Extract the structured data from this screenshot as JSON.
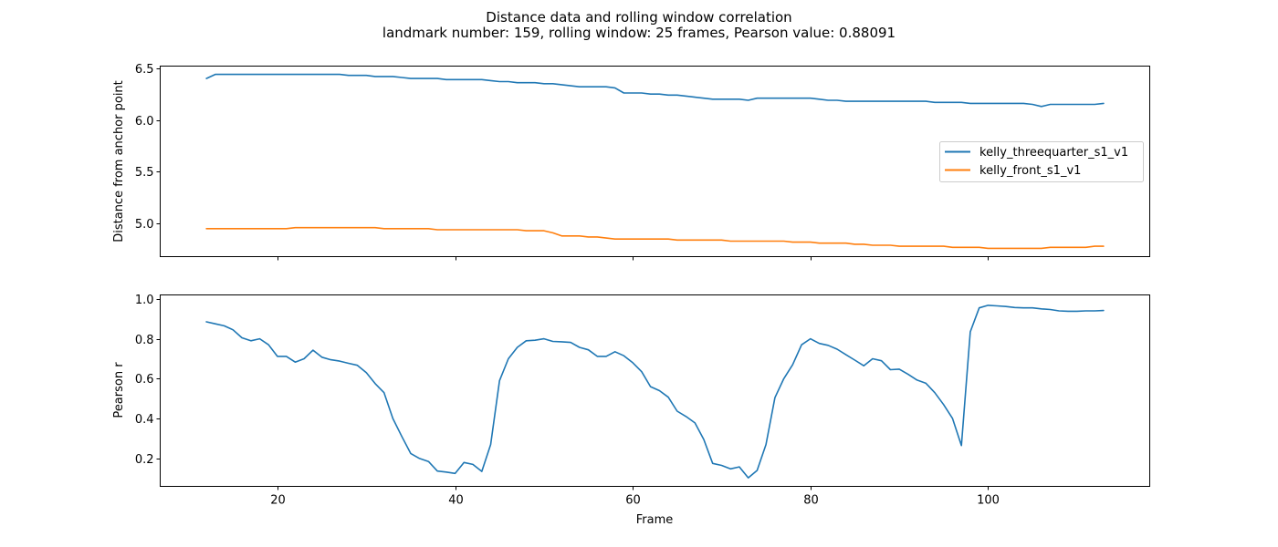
{
  "figure": {
    "title_line1": "Distance data and rolling window correlation",
    "title_line2": "landmark number: 159, rolling window: 25 frames, Pearson value: 0.88091"
  },
  "chart_data": [
    {
      "type": "line",
      "title": "",
      "xlabel": "",
      "ylabel": "Distance from anchor point",
      "xlim": [
        6.8,
        118.2
      ],
      "ylim": [
        4.68,
        6.52
      ],
      "xticks": [
        20,
        40,
        60,
        80,
        100
      ],
      "yticks": [
        5.0,
        5.5,
        6.0,
        6.5
      ],
      "ytick_labels": [
        "5.0",
        "5.5",
        "6.0",
        "6.5"
      ],
      "show_xtick_labels": false,
      "grid": false,
      "legend": {
        "position": "center-right"
      },
      "x": [
        12,
        13,
        14,
        15,
        16,
        17,
        18,
        19,
        20,
        21,
        22,
        23,
        24,
        25,
        26,
        27,
        28,
        29,
        30,
        31,
        32,
        33,
        34,
        35,
        36,
        37,
        38,
        39,
        40,
        41,
        42,
        43,
        44,
        45,
        46,
        47,
        48,
        49,
        50,
        51,
        52,
        53,
        54,
        55,
        56,
        57,
        58,
        59,
        60,
        61,
        62,
        63,
        64,
        65,
        66,
        67,
        68,
        69,
        70,
        71,
        72,
        73,
        74,
        75,
        76,
        77,
        78,
        79,
        80,
        81,
        82,
        83,
        84,
        85,
        86,
        87,
        88,
        89,
        90,
        91,
        92,
        93,
        94,
        95,
        96,
        97,
        98,
        99,
        100,
        101,
        102,
        103,
        104,
        105,
        106,
        107,
        108,
        109,
        110,
        111,
        112,
        113
      ],
      "series": [
        {
          "name": "kelly_threequarter_s1_v1",
          "color": "#1f77b4",
          "values": [
            6.4,
            6.44,
            6.44,
            6.44,
            6.44,
            6.44,
            6.44,
            6.44,
            6.44,
            6.44,
            6.44,
            6.44,
            6.44,
            6.44,
            6.44,
            6.44,
            6.43,
            6.43,
            6.43,
            6.42,
            6.42,
            6.42,
            6.41,
            6.4,
            6.4,
            6.4,
            6.4,
            6.39,
            6.39,
            6.39,
            6.39,
            6.39,
            6.38,
            6.37,
            6.37,
            6.36,
            6.36,
            6.36,
            6.35,
            6.35,
            6.34,
            6.33,
            6.32,
            6.32,
            6.32,
            6.32,
            6.31,
            6.26,
            6.26,
            6.26,
            6.25,
            6.25,
            6.24,
            6.24,
            6.23,
            6.22,
            6.21,
            6.2,
            6.2,
            6.2,
            6.2,
            6.19,
            6.21,
            6.21,
            6.21,
            6.21,
            6.21,
            6.21,
            6.21,
            6.2,
            6.19,
            6.19,
            6.18,
            6.18,
            6.18,
            6.18,
            6.18,
            6.18,
            6.18,
            6.18,
            6.18,
            6.18,
            6.17,
            6.17,
            6.17,
            6.17,
            6.16,
            6.16,
            6.16,
            6.16,
            6.16,
            6.16,
            6.16,
            6.15,
            6.13,
            6.15,
            6.15,
            6.15,
            6.15,
            6.15,
            6.15,
            6.16
          ]
        },
        {
          "name": "kelly_front_s1_v1",
          "color": "#ff7f0e",
          "values": [
            4.95,
            4.95,
            4.95,
            4.95,
            4.95,
            4.95,
            4.95,
            4.95,
            4.95,
            4.95,
            4.96,
            4.96,
            4.96,
            4.96,
            4.96,
            4.96,
            4.96,
            4.96,
            4.96,
            4.96,
            4.95,
            4.95,
            4.95,
            4.95,
            4.95,
            4.95,
            4.94,
            4.94,
            4.94,
            4.94,
            4.94,
            4.94,
            4.94,
            4.94,
            4.94,
            4.94,
            4.93,
            4.93,
            4.93,
            4.91,
            4.88,
            4.88,
            4.88,
            4.87,
            4.87,
            4.86,
            4.85,
            4.85,
            4.85,
            4.85,
            4.85,
            4.85,
            4.85,
            4.84,
            4.84,
            4.84,
            4.84,
            4.84,
            4.84,
            4.83,
            4.83,
            4.83,
            4.83,
            4.83,
            4.83,
            4.83,
            4.82,
            4.82,
            4.82,
            4.81,
            4.81,
            4.81,
            4.81,
            4.8,
            4.8,
            4.79,
            4.79,
            4.79,
            4.78,
            4.78,
            4.78,
            4.78,
            4.78,
            4.78,
            4.77,
            4.77,
            4.77,
            4.77,
            4.76,
            4.76,
            4.76,
            4.76,
            4.76,
            4.76,
            4.76,
            4.77,
            4.77,
            4.77,
            4.77,
            4.77,
            4.78,
            4.78
          ]
        }
      ]
    },
    {
      "type": "line",
      "title": "",
      "xlabel": "Frame",
      "ylabel": "Pearson r",
      "xlim": [
        6.8,
        118.2
      ],
      "ylim": [
        0.06,
        1.02
      ],
      "xticks": [
        20,
        40,
        60,
        80,
        100
      ],
      "xtick_labels": [
        "20",
        "40",
        "60",
        "80",
        "100"
      ],
      "yticks": [
        0.2,
        0.4,
        0.6,
        0.8,
        1.0
      ],
      "ytick_labels": [
        "0.2",
        "0.4",
        "0.6",
        "0.8",
        "1.0"
      ],
      "grid": false,
      "x": [
        12,
        13,
        14,
        15,
        16,
        17,
        18,
        19,
        20,
        21,
        22,
        23,
        24,
        25,
        26,
        27,
        28,
        29,
        30,
        31,
        32,
        33,
        34,
        35,
        36,
        37,
        38,
        39,
        40,
        41,
        42,
        43,
        44,
        45,
        46,
        47,
        48,
        49,
        50,
        51,
        52,
        53,
        54,
        55,
        56,
        57,
        58,
        59,
        60,
        61,
        62,
        63,
        64,
        65,
        66,
        67,
        68,
        69,
        70,
        71,
        72,
        73,
        74,
        75,
        76,
        77,
        78,
        79,
        80,
        81,
        82,
        83,
        84,
        85,
        86,
        87,
        88,
        89,
        90,
        91,
        92,
        93,
        94,
        95,
        96,
        97,
        98,
        99,
        100,
        101,
        102,
        103,
        104,
        105,
        106,
        107,
        108,
        109,
        110,
        111,
        112,
        113
      ],
      "series": [
        {
          "name": "",
          "color": "#1f77b4",
          "values": [
            0.885,
            0.875,
            0.865,
            0.845,
            0.805,
            0.79,
            0.8,
            0.77,
            0.712,
            0.712,
            0.683,
            0.7,
            0.743,
            0.708,
            0.695,
            0.688,
            0.677,
            0.667,
            0.63,
            0.575,
            0.53,
            0.4,
            0.31,
            0.225,
            0.2,
            0.185,
            0.137,
            0.132,
            0.125,
            0.18,
            0.17,
            0.135,
            0.27,
            0.59,
            0.7,
            0.757,
            0.79,
            0.793,
            0.8,
            0.787,
            0.785,
            0.782,
            0.757,
            0.745,
            0.712,
            0.712,
            0.735,
            0.715,
            0.68,
            0.635,
            0.56,
            0.54,
            0.507,
            0.437,
            0.41,
            0.378,
            0.295,
            0.175,
            0.165,
            0.148,
            0.158,
            0.103,
            0.14,
            0.27,
            0.505,
            0.6,
            0.67,
            0.77,
            0.8,
            0.777,
            0.767,
            0.748,
            0.72,
            0.693,
            0.665,
            0.7,
            0.69,
            0.645,
            0.648,
            0.622,
            0.593,
            0.577,
            0.53,
            0.47,
            0.4,
            0.265,
            0.835,
            0.955,
            0.968,
            0.965,
            0.962,
            0.957,
            0.955,
            0.955,
            0.95,
            0.947,
            0.94,
            0.938,
            0.938,
            0.94,
            0.94,
            0.942
          ]
        }
      ]
    }
  ]
}
